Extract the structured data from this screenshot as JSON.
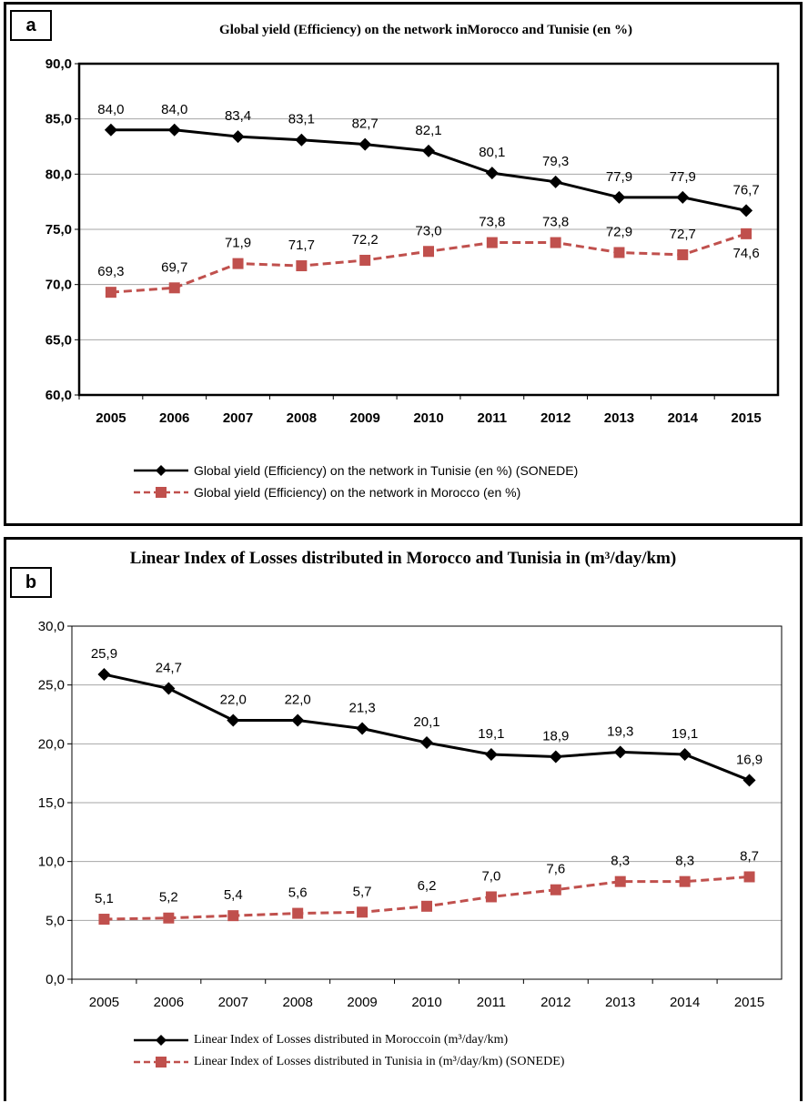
{
  "colors": {
    "tunisia_line": "#000000",
    "morocco_line": "#c0504d",
    "grid": "#a6a6a6"
  },
  "chart_data": [
    {
      "id": "a",
      "type": "line",
      "panel_label": "a",
      "title": "Global yield (Efficiency) on the network   inMorocco and  Tunisie (en %)",
      "xlabel": "",
      "ylabel": "",
      "categories": [
        "2005",
        "2006",
        "2007",
        "2008",
        "2009",
        "2010",
        "2011",
        "2012",
        "2013",
        "2014",
        "2015"
      ],
      "ylim": [
        60,
        90
      ],
      "ytick_labels": [
        "60,0",
        "65,0",
        "70,0",
        "75,0",
        "80,0",
        "85,0",
        "90,0"
      ],
      "grid": true,
      "legend_position": "bottom",
      "series": [
        {
          "name": "Global yield (Efficiency) on the network   in Tunisie (en %) (SONEDE)",
          "color": "#000000",
          "marker": "diamond",
          "style": "solid",
          "values": [
            84.0,
            84.0,
            83.4,
            83.1,
            82.7,
            82.1,
            80.1,
            79.3,
            77.9,
            77.9,
            76.7
          ],
          "labels": [
            "84,0",
            "84,0",
            "83,4",
            "83,1",
            "82,7",
            "82,1",
            "80,1",
            "79,3",
            "77,9",
            "77,9",
            "76,7"
          ]
        },
        {
          "name": "Global yield (Efficiency) on the network   in Morocco (en %)",
          "color": "#c0504d",
          "marker": "square",
          "style": "dashed",
          "values": [
            69.3,
            69.7,
            71.9,
            71.7,
            72.2,
            73.0,
            73.8,
            73.8,
            72.9,
            72.7,
            74.6
          ],
          "labels": [
            "69,3",
            "69,7",
            "71,9",
            "71,7",
            "72,2",
            "73,0",
            "73,8",
            "73,8",
            "72,9",
            "72,7",
            "74,6"
          ]
        }
      ]
    },
    {
      "id": "b",
      "type": "line",
      "panel_label": "b",
      "title": "Linear Index of Losses distributed in Morocco and Tunisia in (m³/day/km)",
      "xlabel": "",
      "ylabel": "",
      "categories": [
        "2005",
        "2006",
        "2007",
        "2008",
        "2009",
        "2010",
        "2011",
        "2012",
        "2013",
        "2014",
        "2015"
      ],
      "ylim": [
        0,
        30
      ],
      "ytick_labels": [
        "0,0",
        "5,0",
        "10,0",
        "15,0",
        "20,0",
        "25,0",
        "30,0"
      ],
      "grid": true,
      "legend_position": "bottom",
      "series": [
        {
          "name": "Linear Index of Losses  distributed in Moroccoin (m³/day/km)",
          "color": "#000000",
          "marker": "diamond",
          "style": "solid",
          "values": [
            25.9,
            24.7,
            22.0,
            22.0,
            21.3,
            20.1,
            19.1,
            18.9,
            19.3,
            19.1,
            16.9
          ],
          "labels": [
            "25,9",
            "24,7",
            "22,0",
            "22,0",
            "21,3",
            "20,1",
            "19,1",
            "18,9",
            "19,3",
            "19,1",
            "16,9"
          ]
        },
        {
          "name": "Linear Index of Losses  distributed in Tunisia in (m³/day/km) (SONEDE)",
          "color": "#c0504d",
          "marker": "square",
          "style": "dashed",
          "values": [
            5.1,
            5.2,
            5.4,
            5.6,
            5.7,
            6.2,
            7.0,
            7.6,
            8.3,
            8.3,
            8.7
          ],
          "labels": [
            "5,1",
            "5,2",
            "5,4",
            "5,6",
            "5,7",
            "6,2",
            "7,0",
            "7,6",
            "8,3",
            "8,3",
            "8,7"
          ]
        }
      ]
    }
  ]
}
